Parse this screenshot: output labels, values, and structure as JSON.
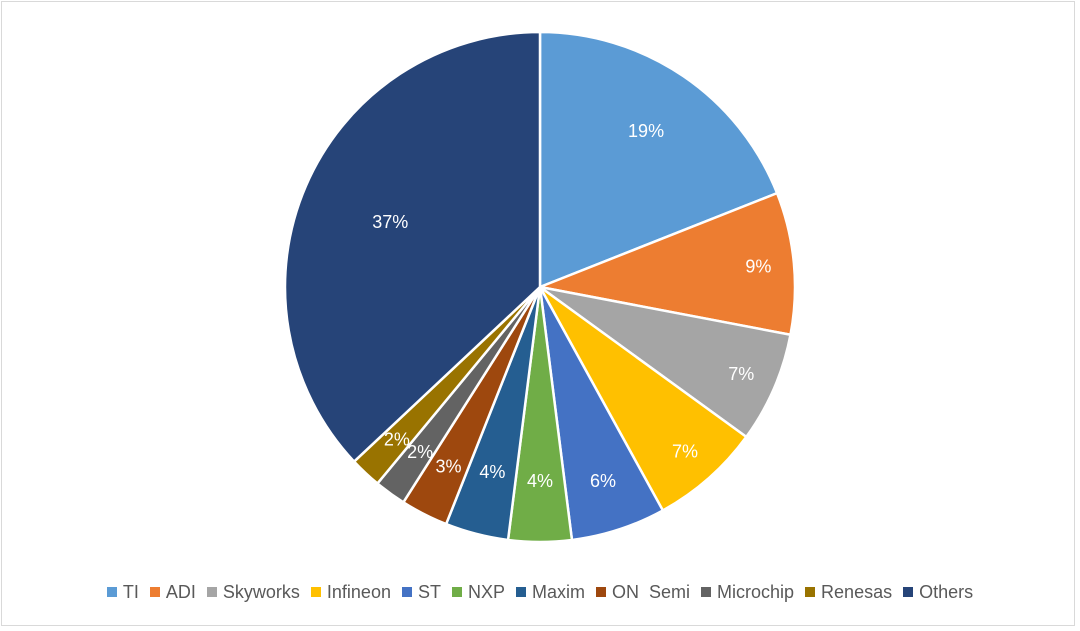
{
  "chart_data": {
    "type": "pie",
    "title": "",
    "categories": [
      "TI",
      "ADI",
      "Skyworks",
      "Infineon",
      "ST",
      "NXP",
      "Maxim",
      "ON  Semi",
      "Microchip",
      "Renesas",
      "Others"
    ],
    "values": [
      19,
      9,
      7,
      7,
      6,
      4,
      4,
      3,
      2,
      2,
      37
    ],
    "labels": [
      "19%",
      "9%",
      "7%",
      "7%",
      "6%",
      "4%",
      "4%",
      "3%",
      "2%",
      "2%",
      "37%"
    ],
    "colors": [
      "#5b9bd5",
      "#ed7d31",
      "#a5a5a5",
      "#ffc000",
      "#4472c4",
      "#70ad47",
      "#255e91",
      "#9e480e",
      "#636363",
      "#997300",
      "#264478"
    ],
    "start": "12 o'clock",
    "direction": "clockwise",
    "legend_position": "bottom"
  }
}
